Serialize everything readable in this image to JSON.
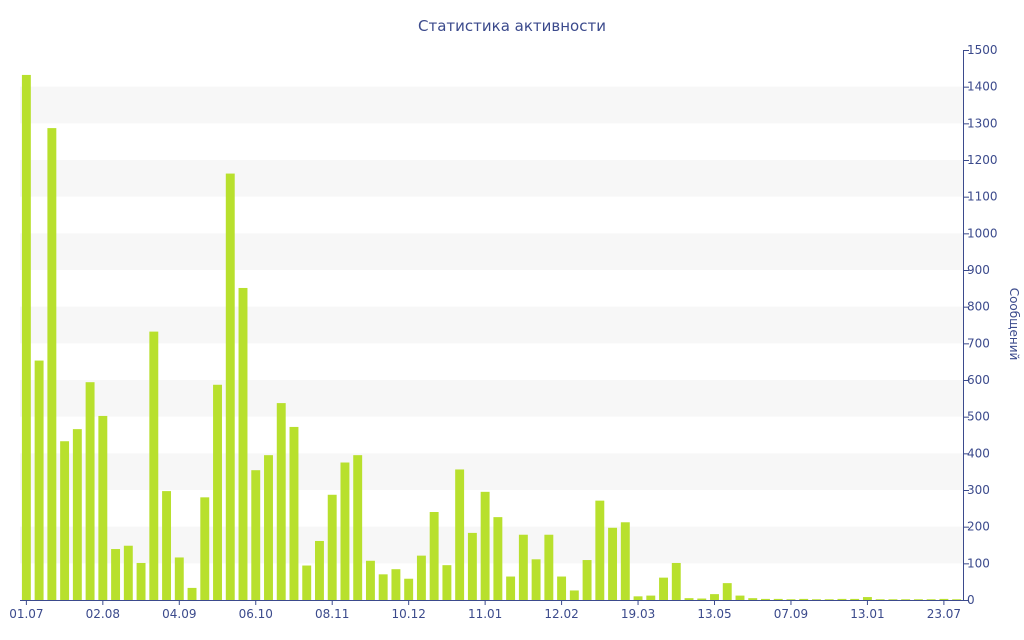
{
  "chart_data": {
    "type": "bar",
    "title": "Статистика активности",
    "ylabel": "Сообщений",
    "xlabel": "",
    "ylim": [
      0,
      1500
    ],
    "y_ticks": [
      0,
      100,
      200,
      300,
      400,
      500,
      600,
      700,
      800,
      900,
      1000,
      1100,
      1200,
      1300,
      1400,
      1500
    ],
    "y_axis_side": "right",
    "grid": "alternating horizontal bands",
    "bar_color": "#b8e02d",
    "axis_color": "#3b4a8c",
    "band_color": "#f7f7f7",
    "x_tick_labels": [
      {
        "index": 0,
        "label": "01.07"
      },
      {
        "index": 6,
        "label": "02.08"
      },
      {
        "index": 12,
        "label": "04.09"
      },
      {
        "index": 18,
        "label": "06.10"
      },
      {
        "index": 24,
        "label": "08.11"
      },
      {
        "index": 30,
        "label": "10.12"
      },
      {
        "index": 36,
        "label": "11.01"
      },
      {
        "index": 42,
        "label": "12.02"
      },
      {
        "index": 48,
        "label": "19.03"
      },
      {
        "index": 54,
        "label": "13.05"
      },
      {
        "index": 60,
        "label": "07.09"
      },
      {
        "index": 66,
        "label": "13.01"
      },
      {
        "index": 72,
        "label": "23.07"
      }
    ],
    "values": [
      1432,
      653,
      1287,
      433,
      466,
      594,
      502,
      139,
      148,
      101,
      732,
      297,
      116,
      33,
      280,
      587,
      1163,
      851,
      354,
      395,
      537,
      472,
      94,
      161,
      287,
      375,
      395,
      107,
      70,
      84,
      58,
      121,
      240,
      95,
      356,
      183,
      295,
      226,
      64,
      178,
      111,
      178,
      64,
      26,
      109,
      271,
      197,
      212,
      10,
      12,
      61,
      101,
      5,
      4,
      16,
      46,
      12,
      5,
      3,
      3,
      2,
      3,
      2,
      2,
      3,
      3,
      8,
      2,
      2,
      2,
      2,
      2,
      3,
      2
    ]
  }
}
